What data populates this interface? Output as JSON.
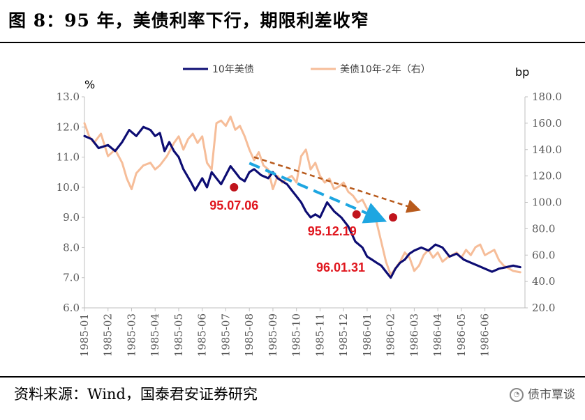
{
  "page": {
    "title": "图 8：95 年，美债利率下行，期限利差收窄",
    "source": "资料来源：Wind，国泰君安证券研究",
    "brand": "债市覃谈",
    "brand_icon": "wechat-icon"
  },
  "chart_data": {
    "type": "line",
    "left_axis": {
      "unit": "%",
      "ylim": [
        6.0,
        13.0
      ],
      "ticks": [
        "13.0",
        "12.0",
        "11.0",
        "10.0",
        "9.0",
        "8.0",
        "7.0",
        "6.0"
      ]
    },
    "right_axis": {
      "unit": "bp",
      "ylim": [
        20.0,
        180.0
      ],
      "ticks": [
        "180.0",
        "160.0",
        "140.0",
        "120.0",
        "100.0",
        "80.0",
        "60.0",
        "40.0",
        "20.0"
      ]
    },
    "x_ticks": [
      "1985-01",
      "1985-02",
      "1985-03",
      "1985-04",
      "1985-05",
      "1985-06",
      "1985-07",
      "1985-08",
      "1985-09",
      "1985-10",
      "1985-11",
      "1985-12",
      "1986-01",
      "1986-02",
      "1986-03",
      "1986-04",
      "1986-05",
      "1986-06"
    ],
    "x_range_months": [
      0,
      18.7
    ],
    "grid": false,
    "legend_placement": "top",
    "series": [
      {
        "name": "10年美债",
        "axis": "left",
        "color": "#0d0d73",
        "x": [
          0,
          0.3,
          0.6,
          1.0,
          1.3,
          1.6,
          1.9,
          2.2,
          2.5,
          2.8,
          3.0,
          3.2,
          3.4,
          3.6,
          3.8,
          4.0,
          4.2,
          4.5,
          4.7,
          5.0,
          5.2,
          5.4,
          5.6,
          5.8,
          6.0,
          6.2,
          6.4,
          6.6,
          6.8,
          7.0,
          7.2,
          7.5,
          7.8,
          8.0,
          8.2,
          8.4,
          8.6,
          8.8,
          9.0,
          9.2,
          9.4,
          9.6,
          9.8,
          10.0,
          10.3,
          10.6,
          10.9,
          11.2,
          11.5,
          11.8,
          12.0,
          12.2,
          12.4,
          12.6,
          12.8,
          13.0,
          13.2,
          13.4,
          13.6,
          13.8,
          14.0,
          14.3,
          14.6,
          14.9,
          15.2,
          15.5,
          15.8,
          16.1,
          16.4,
          16.7,
          17.0,
          17.3,
          17.6,
          17.9,
          18.2,
          18.5
        ],
        "y": [
          11.7,
          11.6,
          11.3,
          11.4,
          11.2,
          11.5,
          11.9,
          11.7,
          12.0,
          11.9,
          11.7,
          11.8,
          11.2,
          11.5,
          11.2,
          11.0,
          10.6,
          10.2,
          9.9,
          10.3,
          10.0,
          10.5,
          10.3,
          10.1,
          10.4,
          10.7,
          10.5,
          10.3,
          10.2,
          10.5,
          10.6,
          10.4,
          10.3,
          10.5,
          10.3,
          10.2,
          10.1,
          9.9,
          9.7,
          9.5,
          9.2,
          9.0,
          9.1,
          9.0,
          9.5,
          9.2,
          9.0,
          8.7,
          8.2,
          8.0,
          7.7,
          7.6,
          7.5,
          7.4,
          7.2,
          7.0,
          7.3,
          7.5,
          7.6,
          7.8,
          7.9,
          8.0,
          7.9,
          8.1,
          8.0,
          7.7,
          7.8,
          7.6,
          7.5,
          7.4,
          7.3,
          7.2,
          7.3,
          7.35,
          7.4,
          7.35
        ]
      },
      {
        "name": "美债10年-2年（右）",
        "axis": "right",
        "color": "#f6bd99",
        "x": [
          0,
          0.2,
          0.4,
          0.7,
          1.0,
          1.3,
          1.6,
          1.8,
          2.0,
          2.2,
          2.5,
          2.8,
          3.0,
          3.2,
          3.5,
          3.8,
          4.0,
          4.2,
          4.4,
          4.6,
          4.8,
          5.0,
          5.2,
          5.4,
          5.6,
          5.8,
          6.0,
          6.2,
          6.4,
          6.6,
          6.8,
          7.0,
          7.2,
          7.4,
          7.6,
          7.8,
          8.0,
          8.2,
          8.4,
          8.6,
          8.8,
          9.0,
          9.2,
          9.4,
          9.6,
          9.8,
          10.0,
          10.2,
          10.4,
          10.6,
          10.8,
          11.0,
          11.2,
          11.4,
          11.6,
          11.8,
          12.0,
          12.2,
          12.4,
          12.6,
          12.8,
          13.0,
          13.2,
          13.4,
          13.6,
          13.8,
          14.0,
          14.2,
          14.4,
          14.6,
          14.8,
          15.0,
          15.2,
          15.4,
          15.6,
          15.8,
          16.0,
          16.2,
          16.4,
          16.6,
          16.8,
          17.0,
          17.2,
          17.4,
          17.6,
          17.8,
          18.0,
          18.2,
          18.5
        ],
        "y": [
          160,
          150,
          145,
          152,
          135,
          140,
          130,
          118,
          110,
          122,
          128,
          130,
          125,
          128,
          135,
          145,
          150,
          140,
          148,
          152,
          145,
          150,
          130,
          125,
          160,
          162,
          158,
          165,
          155,
          158,
          150,
          140,
          132,
          138,
          128,
          125,
          110,
          120,
          115,
          118,
          120,
          115,
          135,
          140,
          125,
          130,
          120,
          115,
          118,
          110,
          112,
          115,
          108,
          105,
          100,
          102,
          95,
          90,
          85,
          70,
          55,
          45,
          50,
          55,
          62,
          58,
          48,
          52,
          60,
          64,
          58,
          62,
          55,
          58,
          60,
          62,
          58,
          64,
          60,
          66,
          68,
          60,
          62,
          64,
          56,
          52,
          50,
          48,
          47
        ]
      }
    ],
    "annotations": [
      {
        "label": "95.07.06",
        "x": 6.35,
        "y": 10.0
      },
      {
        "label": "95.12.19",
        "x": 11.55,
        "y": 9.1
      },
      {
        "label": "96.01.31",
        "x": 13.1,
        "y": 9.0
      }
    ],
    "trend_arrows": [
      {
        "color": "#b85a1c",
        "from": [
          7.2,
          11.0
        ],
        "to": [
          14.0,
          9.3
        ]
      },
      {
        "color": "#1ea6e1",
        "from": [
          7.0,
          10.8
        ],
        "to": [
          12.4,
          9.0
        ]
      }
    ]
  }
}
